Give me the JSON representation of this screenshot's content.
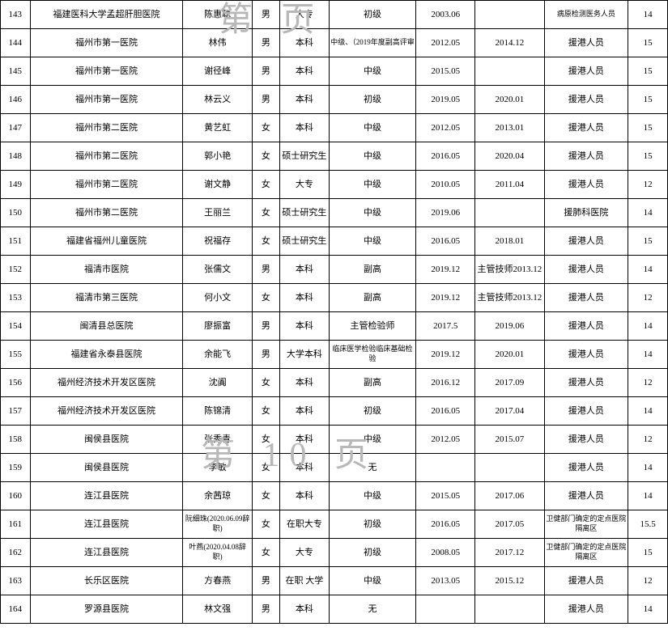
{
  "watermarks": {
    "top": "第   页",
    "middle": "第 10 页"
  },
  "cols": {
    "w": [
      30,
      155,
      70,
      28,
      50,
      88,
      60,
      70,
      85,
      40
    ]
  },
  "rows": [
    {
      "c": [
        "143",
        "福建医科大学孟超肝胆医院",
        "陈惠聪",
        "男",
        "大专",
        "初级",
        "2003.06",
        "",
        "病原检测医务人员",
        "14"
      ]
    },
    {
      "c": [
        "144",
        "福州市第一医院",
        "林伟",
        "男",
        "本科",
        "中级、（2019年度副高评审",
        "2012.05",
        "2014.12",
        "援港人员",
        "15"
      ]
    },
    {
      "c": [
        "145",
        "福州市第一医院",
        "谢径峰",
        "男",
        "本科",
        "中级",
        "2015.05",
        "",
        "援港人员",
        "15"
      ]
    },
    {
      "c": [
        "146",
        "福州市第一医院",
        "林云义",
        "男",
        "本科",
        "初级",
        "2019.05",
        "2020.01",
        "援港人员",
        "15"
      ]
    },
    {
      "c": [
        "147",
        "福州市第二医院",
        "黄艺虹",
        "女",
        "本科",
        "中级",
        "2012.05",
        "2013.01",
        "援港人员",
        "15"
      ]
    },
    {
      "c": [
        "148",
        "福州市第二医院",
        "郭小艳",
        "女",
        "硕士研究生",
        "中级",
        "2016.05",
        "2020.04",
        "援港人员",
        "15"
      ]
    },
    {
      "c": [
        "149",
        "福州市第二医院",
        "谢文静",
        "女",
        "大专",
        "中级",
        "2010.05",
        "2011.04",
        "援港人员",
        "12"
      ]
    },
    {
      "c": [
        "150",
        "福州市第二医院",
        "王丽兰",
        "女",
        "硕士研究生",
        "中级",
        "2019.06",
        "",
        "援肺科医院",
        "14"
      ]
    },
    {
      "c": [
        "151",
        "福建省福州儿童医院",
        "祝福存",
        "女",
        "硕士研究生",
        "中级",
        "2016.05",
        "2018.01",
        "援港人员",
        "15"
      ],
      "dashed": true
    },
    {
      "c": [
        "152",
        "福清市医院",
        "张儒文",
        "男",
        "本科",
        "副高",
        "2019.12",
        "主管技师2013.12",
        "援港人员",
        "14"
      ]
    },
    {
      "c": [
        "153",
        "福清市第三医院",
        "何小文",
        "女",
        "本科",
        "副高",
        "2019.12",
        "主管技师2013.12",
        "援港人员",
        "12"
      ]
    },
    {
      "c": [
        "154",
        "闽清县总医院",
        "廖振富",
        "男",
        "本科",
        "主管检验师",
        "2017.5",
        "2019.06",
        "援港人员",
        "14"
      ]
    },
    {
      "c": [
        "155",
        "福建省永泰县医院",
        "余能飞",
        "男",
        "大学本科",
        "临床医学检验临床基础检验",
        "2019.12",
        "2020.01",
        "援港人员",
        "14"
      ]
    },
    {
      "c": [
        "156",
        "福州经济技术开发区医院",
        "沈阗",
        "女",
        "本科",
        "副高",
        "2016.12",
        "2017.09",
        "援港人员",
        "12"
      ]
    },
    {
      "c": [
        "157",
        "福州经济技术开发区医院",
        "陈锦清",
        "女",
        "本科",
        "初级",
        "2016.05",
        "2017.04",
        "援港人员",
        "14"
      ]
    },
    {
      "c": [
        "158",
        "闽侯县医院",
        "张秀青",
        "女",
        "本科",
        "中级",
        "2012.05",
        "2015.07",
        "援港人员",
        "12"
      ]
    },
    {
      "c": [
        "159",
        "闽侯县医院",
        "李敏",
        "女",
        "本科",
        "无",
        "",
        "",
        "援港人员",
        "14"
      ]
    },
    {
      "c": [
        "160",
        "连江县医院",
        "余茜琼",
        "女",
        "本科",
        "中级",
        "2015.05",
        "2017.06",
        "援港人员",
        "14"
      ]
    },
    {
      "c": [
        "161",
        "连江县医院",
        "阮细珠(2020.06.09辞职)",
        "女",
        "在职大专",
        "初级",
        "2016.05",
        "2017.05",
        "卫健部门确定的定点医院隔离区",
        "15.5"
      ]
    },
    {
      "c": [
        "162",
        "连江县医院",
        "叶燕(2020.04.08辞职)",
        "女",
        "大专",
        "初级",
        "2008.05",
        "2017.12",
        "卫健部门确定的定点医院隔离区",
        "15"
      ]
    },
    {
      "c": [
        "163",
        "长乐区医院",
        "方春燕",
        "男",
        "在职 大学",
        "中级",
        "2013.05",
        "2015.12",
        "援港人员",
        "12"
      ]
    },
    {
      "c": [
        "164",
        "罗源县医院",
        "林文强",
        "男",
        "本科",
        "无",
        "",
        "",
        "援港人员",
        "14"
      ]
    }
  ]
}
